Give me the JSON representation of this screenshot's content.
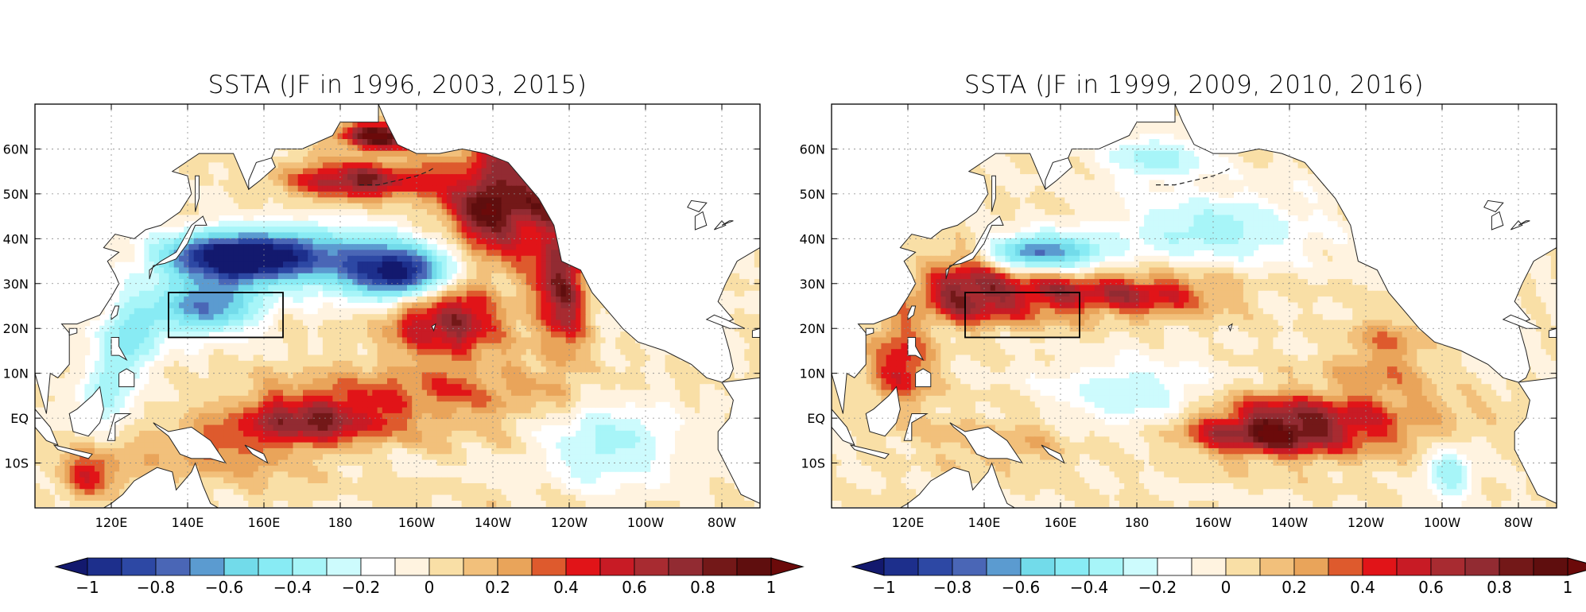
{
  "panels": [
    {
      "id": "left",
      "title": "SSTA (JF in 1996, 2003, 2015)",
      "features": [
        {
          "lon": 152,
          "lat": 36,
          "sx": 18,
          "sy": 5,
          "v": -0.95
        },
        {
          "lon": 196,
          "lat": 32,
          "sx": 14,
          "sy": 6,
          "v": -0.9
        },
        {
          "lon": 172,
          "lat": 36,
          "sx": 30,
          "sy": 7,
          "v": -0.55
        },
        {
          "lon": 145,
          "lat": 25,
          "sx": 14,
          "sy": 6,
          "v": -0.7
        },
        {
          "lon": 125,
          "lat": 18,
          "sx": 8,
          "sy": 9,
          "v": -0.45
        },
        {
          "lon": 222,
          "lat": 48,
          "sx": 14,
          "sy": 12,
          "v": 1.0
        },
        {
          "lon": 208,
          "lat": 22,
          "sx": 14,
          "sy": 8,
          "v": 0.75
        },
        {
          "lon": 238,
          "lat": 30,
          "sx": 6,
          "sy": 14,
          "v": 0.85
        },
        {
          "lon": 185,
          "lat": 53,
          "sx": 18,
          "sy": 4,
          "v": 0.8
        },
        {
          "lon": 190,
          "lat": 63,
          "sx": 10,
          "sy": 3,
          "v": 1.0
        },
        {
          "lon": 172,
          "lat": 0,
          "sx": 20,
          "sy": 5,
          "v": 0.7
        },
        {
          "lon": 205,
          "lat": 5,
          "sx": 40,
          "sy": 8,
          "v": 0.3
        },
        {
          "lon": 150,
          "lat": -8,
          "sx": 25,
          "sy": 6,
          "v": 0.3
        },
        {
          "lon": 250,
          "lat": -5,
          "sx": 18,
          "sy": 10,
          "v": -0.35
        },
        {
          "lon": 118,
          "lat": 5,
          "sx": 6,
          "sy": 8,
          "v": -0.35
        },
        {
          "lon": 115,
          "lat": -12,
          "sx": 8,
          "sy": 5,
          "v": 0.45
        }
      ]
    },
    {
      "id": "right",
      "title": "SSTA (JF in 1999, 2009, 2010, 2016)",
      "features": [
        {
          "lon": 215,
          "lat": -3,
          "sx": 20,
          "sy": 5,
          "v": 0.75
        },
        {
          "lon": 230,
          "lat": 0,
          "sx": 32,
          "sy": 8,
          "v": 0.4
        },
        {
          "lon": 155,
          "lat": 37,
          "sx": 16,
          "sy": 4,
          "v": -0.7
        },
        {
          "lon": 150,
          "lat": 27,
          "sx": 25,
          "sy": 5,
          "v": 0.6
        },
        {
          "lon": 185,
          "lat": 28,
          "sx": 20,
          "sy": 5,
          "v": 0.45
        },
        {
          "lon": 135,
          "lat": 30,
          "sx": 10,
          "sy": 8,
          "v": 0.5
        },
        {
          "lon": 200,
          "lat": 42,
          "sx": 25,
          "sy": 8,
          "v": -0.35
        },
        {
          "lon": 185,
          "lat": 58,
          "sx": 14,
          "sy": 5,
          "v": -0.35
        },
        {
          "lon": 180,
          "lat": 5,
          "sx": 22,
          "sy": 8,
          "v": -0.3
        },
        {
          "lon": 118,
          "lat": 12,
          "sx": 8,
          "sy": 10,
          "v": 0.5
        },
        {
          "lon": 145,
          "lat": -5,
          "sx": 20,
          "sy": 6,
          "v": 0.2
        },
        {
          "lon": 245,
          "lat": 15,
          "sx": 10,
          "sy": 8,
          "v": 0.3
        },
        {
          "lon": 262,
          "lat": -12,
          "sx": 6,
          "sy": 6,
          "v": -0.4
        }
      ]
    }
  ],
  "map": {
    "lon_min": 100,
    "lon_max": 290,
    "lat_min": -20,
    "lat_max": 70,
    "lon_ticks": [
      {
        "lon": 120,
        "label": "120E"
      },
      {
        "lon": 140,
        "label": "140E"
      },
      {
        "lon": 160,
        "label": "160E"
      },
      {
        "lon": 180,
        "label": "180"
      },
      {
        "lon": 200,
        "label": "160W"
      },
      {
        "lon": 220,
        "label": "140W"
      },
      {
        "lon": 240,
        "label": "120W"
      },
      {
        "lon": 260,
        "label": "100W"
      },
      {
        "lon": 280,
        "label": "80W"
      }
    ],
    "lat_ticks": [
      {
        "lat": 60,
        "label": "60N"
      },
      {
        "lat": 50,
        "label": "50N"
      },
      {
        "lat": 40,
        "label": "40N"
      },
      {
        "lat": 30,
        "label": "30N"
      },
      {
        "lat": 20,
        "label": "20N"
      },
      {
        "lat": 10,
        "label": "10N"
      },
      {
        "lat": 0,
        "label": "EQ"
      },
      {
        "lat": -10,
        "label": "10S"
      }
    ],
    "box": {
      "lon1": 135,
      "lon2": 165,
      "lat1": 18,
      "lat2": 28
    }
  },
  "colorbar": {
    "levels": [
      -1,
      -0.9,
      -0.8,
      -0.7,
      -0.6,
      -0.5,
      -0.4,
      -0.3,
      -0.2,
      -0.1,
      0,
      0.1,
      0.2,
      0.3,
      0.4,
      0.5,
      0.6,
      0.7,
      0.8,
      0.9,
      1
    ],
    "colors": [
      "#13196e",
      "#1d2f8c",
      "#2d48a4",
      "#4a66b6",
      "#5b9bd0",
      "#72dbea",
      "#88ebf4",
      "#a7f5f8",
      "#cdfbfd",
      "#ffffff",
      "#fff3e0",
      "#f9dfa6",
      "#f2c07b",
      "#e9a45a",
      "#de5a2d",
      "#e11418",
      "#c81b25",
      "#a82b31",
      "#922b32",
      "#731818",
      "#5f0e0e",
      "#6b0a0a"
    ],
    "labels": [
      {
        "value": -1,
        "text": "−1"
      },
      {
        "value": -0.8,
        "text": "−0.8"
      },
      {
        "value": -0.6,
        "text": "−0.6"
      },
      {
        "value": -0.4,
        "text": "−0.4"
      },
      {
        "value": -0.2,
        "text": "−0.2"
      },
      {
        "value": 0,
        "text": "0"
      },
      {
        "value": 0.2,
        "text": "0.2"
      },
      {
        "value": 0.4,
        "text": "0.4"
      },
      {
        "value": 0.6,
        "text": "0.6"
      },
      {
        "value": 0.8,
        "text": "0.8"
      },
      {
        "value": 1,
        "text": "1"
      }
    ]
  }
}
